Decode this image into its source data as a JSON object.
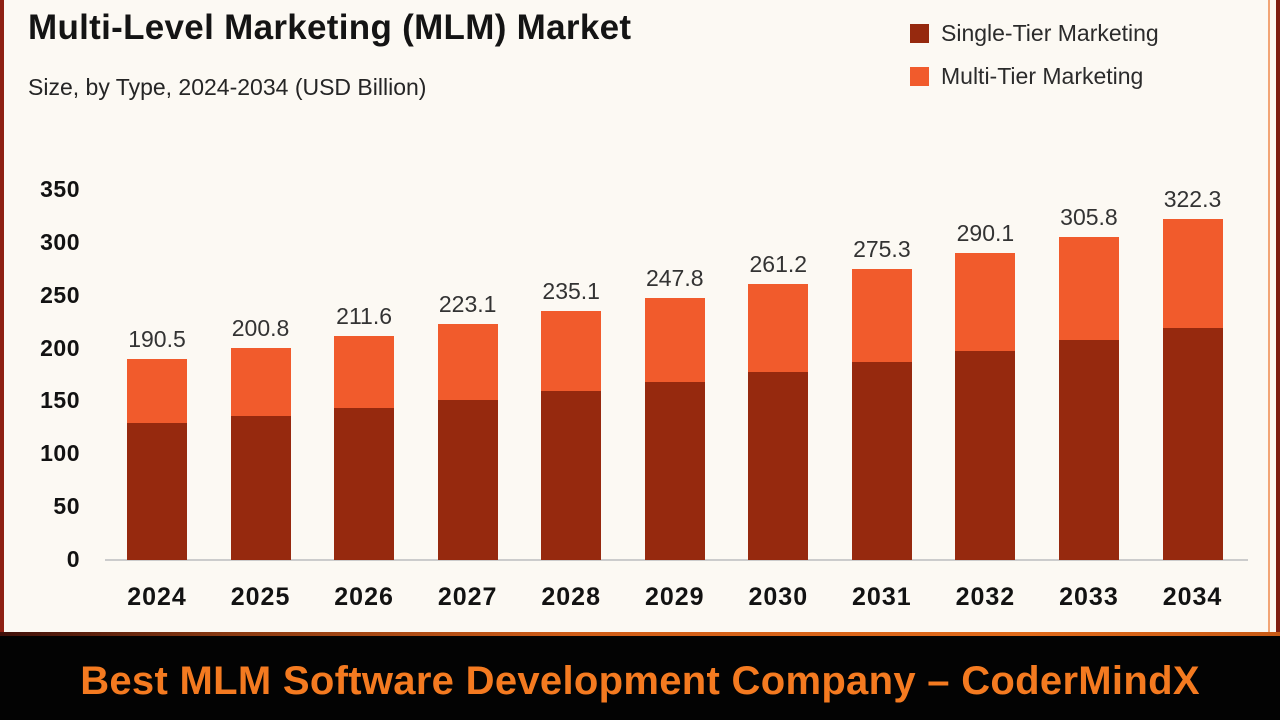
{
  "page": {
    "title": "Multi-Level Marketing (MLM) Market",
    "subtitle": "Size, by Type, 2024-2034 (USD Billion)",
    "banner_text": "Best MLM Software Development Company – CoderMindX"
  },
  "legend": [
    {
      "label": "Single-Tier Marketing",
      "color": "#96290E"
    },
    {
      "label": "Multi-Tier Marketing",
      "color": "#F15B2C"
    }
  ],
  "colors": {
    "background": "#FCF9F3",
    "single_tier_bar": "#96290E",
    "multi_tier_bar": "#F15B2C",
    "axis_line": "#CCCCCC",
    "frame_left": "#8E2013",
    "banner_background": "#030303",
    "banner_text": "#F47A20"
  },
  "chart_data": {
    "type": "bar",
    "stacked": true,
    "title": "Multi-Level Marketing (MLM) Market",
    "subtitle": "Size, by Type, 2024-2034 (USD Billion)",
    "xlabel": "",
    "ylabel": "",
    "categories": [
      "2024",
      "2025",
      "2026",
      "2027",
      "2028",
      "2029",
      "2030",
      "2031",
      "2032",
      "2033",
      "2034"
    ],
    "series": [
      {
        "name": "Single-Tier Marketing",
        "color": "#96290E",
        "values": [
          129.5,
          136.5,
          143.9,
          151.7,
          159.9,
          168.5,
          177.6,
          187.2,
          197.3,
          207.9,
          219.2
        ]
      },
      {
        "name": "Multi-Tier Marketing",
        "color": "#F15B2C",
        "values": [
          61.0,
          64.3,
          67.7,
          71.4,
          75.2,
          79.3,
          83.6,
          88.1,
          92.8,
          97.9,
          103.1
        ]
      }
    ],
    "totals": [
      190.5,
      200.8,
      211.6,
      223.1,
      235.1,
      247.8,
      261.2,
      275.3,
      290.1,
      305.8,
      322.3
    ],
    "total_labels_shown": true,
    "yticks": [
      0,
      50,
      100,
      150,
      200,
      250,
      300,
      350
    ],
    "ylim": [
      0,
      350
    ],
    "grid": false,
    "legend_position": "top-right"
  }
}
